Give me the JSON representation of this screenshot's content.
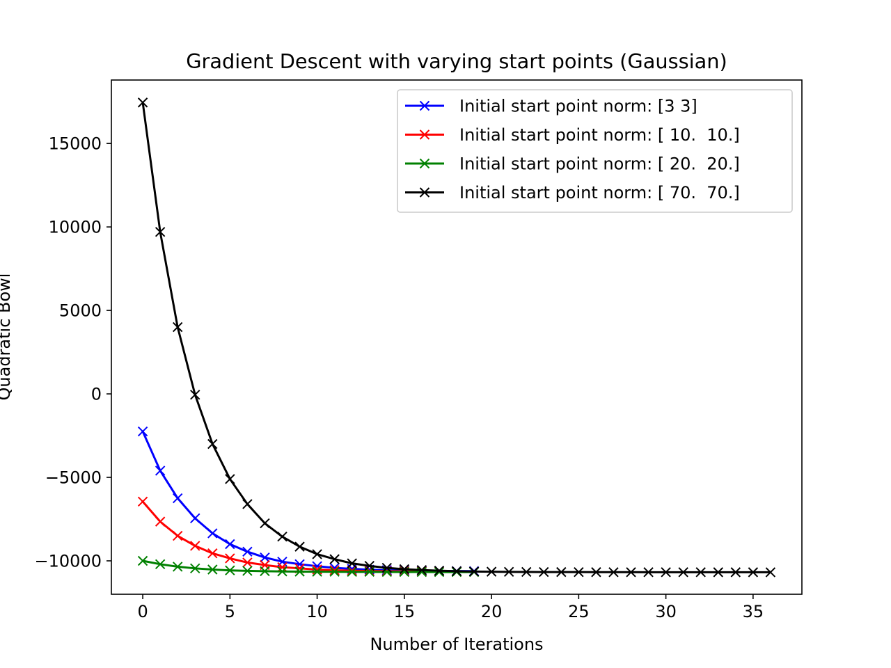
{
  "chart_data": {
    "type": "line",
    "title": "Gradient Descent with varying start points (Gaussian)",
    "xlabel": "Number of Iterations",
    "ylabel": "Quadratic Bowl",
    "xlim": [
      -1.8,
      37.8
    ],
    "ylim": [
      -12000,
      18800
    ],
    "xticks": [
      0,
      5,
      10,
      15,
      20,
      25,
      30,
      35
    ],
    "xtick_labels": [
      "0",
      "5",
      "10",
      "15",
      "20",
      "25",
      "30",
      "35"
    ],
    "yticks": [
      -10000,
      -5000,
      0,
      5000,
      10000,
      15000
    ],
    "ytick_labels": [
      "−10000",
      "−5000",
      "0",
      "5000",
      "10000",
      "15000"
    ],
    "grid": false,
    "legend_position": "upper-right",
    "marker": "x",
    "series": [
      {
        "name": "Initial start point norm: [3 3]",
        "color": "#0000ff",
        "x": [
          0,
          1,
          2,
          3,
          4,
          5,
          6,
          7,
          8,
          9,
          10,
          11,
          12,
          13,
          14,
          15,
          16,
          17,
          18,
          19
        ],
        "y": [
          -2250,
          -4600,
          -6250,
          -7450,
          -8350,
          -9000,
          -9450,
          -9800,
          -10050,
          -10200,
          -10320,
          -10420,
          -10480,
          -10530,
          -10560,
          -10580,
          -10590,
          -10600,
          -10610,
          -10615
        ]
      },
      {
        "name": "Initial start point norm: [ 10.  10.]",
        "color": "#ff0000",
        "x": [
          0,
          1,
          2,
          3,
          4,
          5,
          6,
          7,
          8,
          9,
          10,
          11,
          12,
          13,
          14,
          15,
          16,
          17,
          18,
          19
        ],
        "y": [
          -6450,
          -7650,
          -8500,
          -9100,
          -9550,
          -9850,
          -10100,
          -10250,
          -10380,
          -10450,
          -10520,
          -10560,
          -10590,
          -10610,
          -10620,
          -10630,
          -10640,
          -10645,
          -10650,
          -10650
        ]
      },
      {
        "name": "Initial start point norm: [ 20.  20.]",
        "color": "#008000",
        "x": [
          0,
          1,
          2,
          3,
          4,
          5,
          6,
          7,
          8,
          9,
          10,
          11,
          12,
          13,
          14,
          15,
          16,
          17,
          18,
          19
        ],
        "y": [
          -10000,
          -10200,
          -10350,
          -10450,
          -10520,
          -10570,
          -10600,
          -10620,
          -10635,
          -10645,
          -10650,
          -10655,
          -10660,
          -10660,
          -10665,
          -10665,
          -10668,
          -10670,
          -10670,
          -10670
        ]
      },
      {
        "name": "Initial start point norm: [ 70.  70.]",
        "color": "#000000",
        "x": [
          0,
          1,
          2,
          3,
          4,
          5,
          6,
          7,
          8,
          9,
          10,
          11,
          12,
          13,
          14,
          15,
          16,
          17,
          18,
          19,
          20,
          21,
          22,
          23,
          24,
          25,
          26,
          27,
          28,
          29,
          30,
          31,
          32,
          33,
          34,
          35,
          36
        ],
        "y": [
          17450,
          9700,
          4000,
          -50,
          -3000,
          -5100,
          -6600,
          -7750,
          -8550,
          -9150,
          -9600,
          -9900,
          -10150,
          -10300,
          -10420,
          -10500,
          -10550,
          -10590,
          -10620,
          -10640,
          -10650,
          -10660,
          -10665,
          -10670,
          -10672,
          -10674,
          -10676,
          -10678,
          -10679,
          -10680,
          -10680,
          -10681,
          -10681,
          -10682,
          -10682,
          -10682,
          -10683
        ]
      }
    ]
  }
}
